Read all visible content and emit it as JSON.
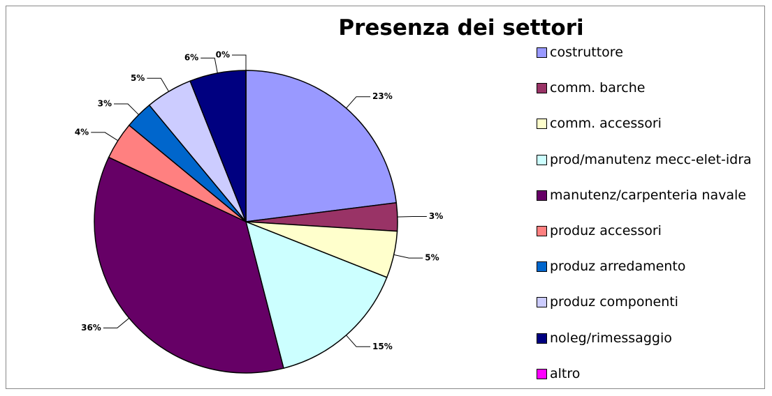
{
  "chart_data": {
    "type": "pie",
    "title": "Presenza dei settori",
    "categories": [
      "costruttore",
      "comm. barche",
      "comm. accessori",
      "prod/manutenz mecc-elet-idra",
      "manutenz/carpenteria navale",
      "produz accessori",
      "produz arredamento",
      "produz componenti",
      "noleg/rimessaggio",
      "altro"
    ],
    "values": [
      23,
      3,
      5,
      15,
      36,
      4,
      3,
      5,
      6,
      0
    ],
    "value_labels": [
      "23%",
      "3%",
      "5%",
      "15%",
      "36%",
      "4%",
      "3%",
      "5%",
      "6%",
      "0%"
    ],
    "colors": [
      "#9999ff",
      "#993366",
      "#ffffcc",
      "#ccffff",
      "#660066",
      "#ff8080",
      "#0066cc",
      "#ccccff",
      "#000080",
      "#ff00ff"
    ],
    "legend": "right"
  }
}
